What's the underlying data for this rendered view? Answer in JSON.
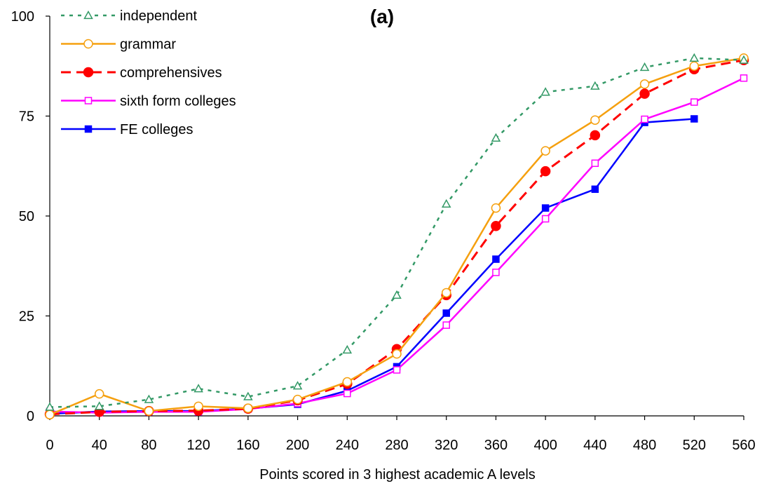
{
  "chart_data": {
    "type": "line",
    "title": "(a)",
    "xlabel": "Points scored in 3 highest academic A levels",
    "ylabel": "",
    "x": [
      0,
      40,
      80,
      120,
      160,
      200,
      240,
      280,
      320,
      360,
      400,
      440,
      480,
      520,
      560
    ],
    "xlim": [
      0,
      560
    ],
    "ylim": [
      0,
      100
    ],
    "xticks": [
      "0",
      "40",
      "80",
      "120",
      "160",
      "200",
      "240",
      "280",
      "320",
      "360",
      "400",
      "440",
      "480",
      "520",
      "560"
    ],
    "yticks": [
      "0",
      "25",
      "50",
      "75",
      "100"
    ],
    "grid": false,
    "legend_position": "top-left",
    "series": [
      {
        "name": "independent",
        "color": "#339966",
        "dash": "dotted",
        "marker": "triangle-open",
        "values": [
          2.2,
          2.4,
          4.1,
          6.8,
          4.8,
          7.5,
          16.5,
          30.2,
          53,
          69.5,
          81,
          82.5,
          87.2,
          89.5,
          89
        ]
      },
      {
        "name": "grammar",
        "color": "#F5A00F",
        "dash": "solid",
        "marker": "circle-open",
        "values": [
          0.3,
          5.5,
          1.2,
          2.4,
          1.9,
          4.1,
          8.5,
          15.5,
          30.8,
          52,
          66.3,
          74,
          83,
          87.5,
          89.5
        ]
      },
      {
        "name": "comprehensives",
        "color": "#FF0000",
        "dash": "dashed",
        "marker": "circle-filled",
        "values": [
          0.4,
          1,
          1.2,
          1.3,
          1.8,
          3.9,
          8,
          16.7,
          30.2,
          47.5,
          61.2,
          70.2,
          80.6,
          86.7,
          89
        ]
      },
      {
        "name": "sixth form colleges",
        "color": "#FF00FF",
        "dash": "solid",
        "marker": "square-open",
        "values": [
          1.1,
          0.8,
          1,
          1,
          1.7,
          3.1,
          5.6,
          11.5,
          22.7,
          35.9,
          49.3,
          63.2,
          74.2,
          78.5,
          84.5
        ]
      },
      {
        "name": "FE colleges",
        "color": "#0000FF",
        "dash": "solid",
        "marker": "square-filled",
        "values": [
          0.5,
          1.1,
          1.2,
          1.2,
          1.8,
          2.9,
          6.3,
          12.3,
          25.7,
          39.2,
          52,
          56.7,
          73.4,
          74.3,
          null
        ]
      }
    ]
  }
}
